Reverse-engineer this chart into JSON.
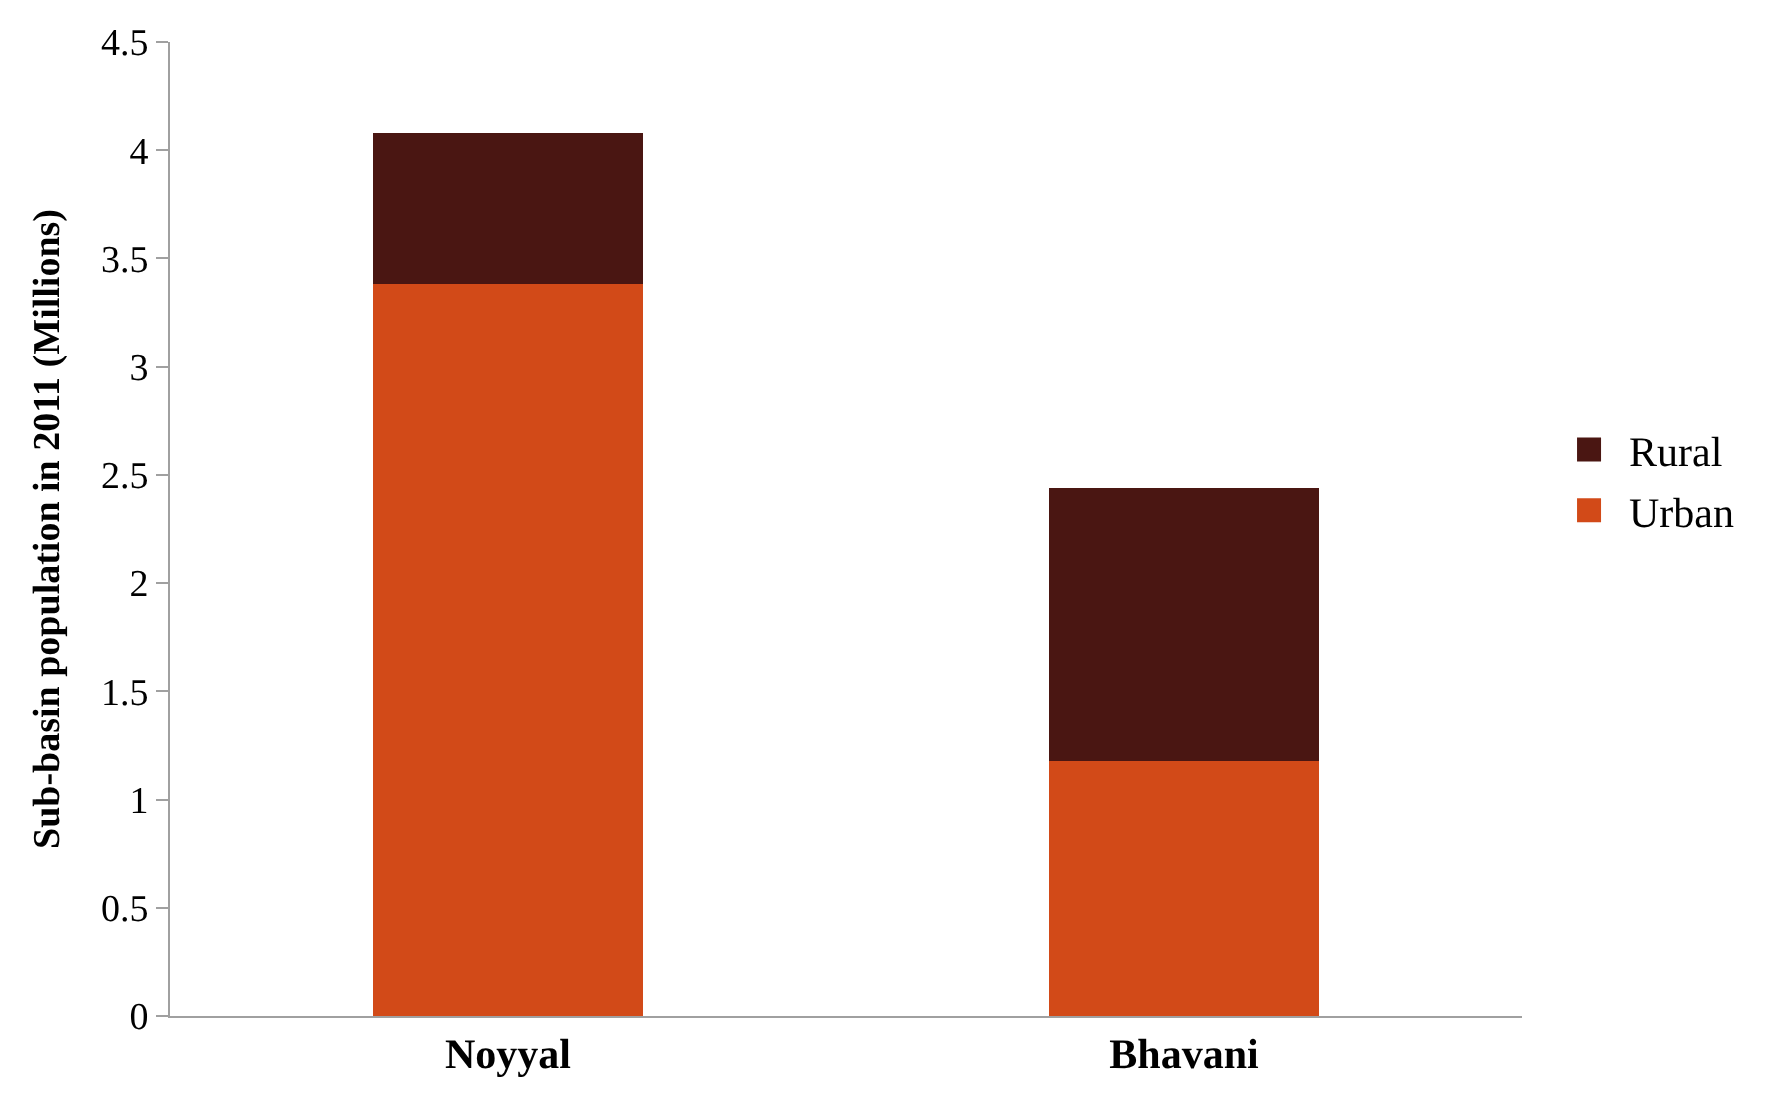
{
  "chart_data": {
    "type": "bar",
    "stacked": true,
    "ylabel": "Sub-basin population in 2011 (Millions)",
    "categories": [
      "Noyyal",
      "Bhavani"
    ],
    "series": [
      {
        "name": "Urban",
        "color": "#d24a18",
        "values": [
          3.38,
          1.18
        ]
      },
      {
        "name": "Rural",
        "color": "#4a1612",
        "values": [
          0.7,
          1.26
        ]
      }
    ],
    "ylim": [
      0,
      4.5
    ],
    "yticks": [
      0,
      0.5,
      1,
      1.5,
      2,
      2.5,
      3,
      3.5,
      4,
      4.5
    ],
    "legend": "right"
  }
}
